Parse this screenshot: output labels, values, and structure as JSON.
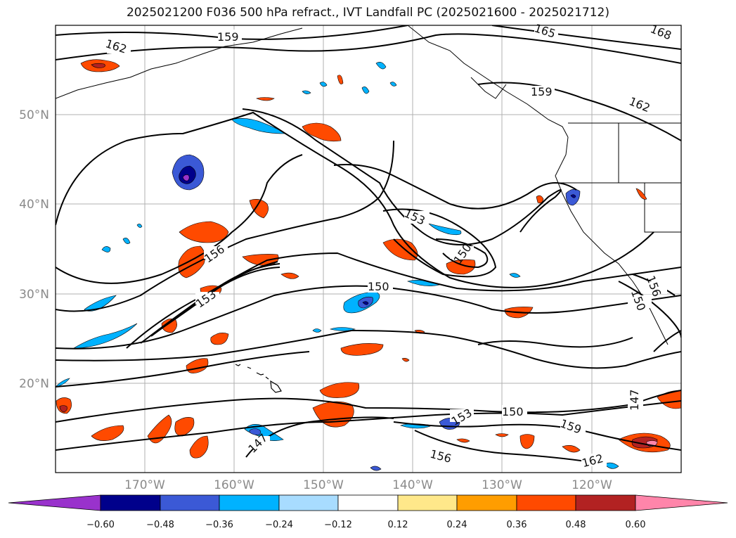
{
  "title": "2025021200 F036 500 hPa refract., IVT Landfall PC (2025021600 - 2025021712)",
  "map": {
    "lat_labels": [
      "50°N",
      "40°N",
      "30°N",
      "20°N"
    ],
    "lon_labels": [
      "170°W",
      "160°W",
      "150°W",
      "140°W",
      "130°W",
      "120°W"
    ],
    "contour_labels": [
      "159",
      "162",
      "165",
      "168",
      "159",
      "162",
      "153",
      "150",
      "156",
      "153",
      "150",
      "156",
      "150",
      "147",
      "150",
      "153",
      "159",
      "162",
      "156",
      "147"
    ],
    "fill_colors": {
      "orange_light": "#ffe88a",
      "orange": "#ff9d00",
      "red_orange": "#ff4a00",
      "dark_red": "#b22222",
      "blue_light": "#a8dcff",
      "cyan": "#00b2ff",
      "blue": "#3b59d6",
      "navy": "#00008b",
      "purple": "#9932cc"
    }
  },
  "colorbar": {
    "colors": [
      "#9932cc",
      "#00008b",
      "#3b59d6",
      "#00b2ff",
      "#a8dcff",
      "#ffffff",
      "#ffe88a",
      "#ff9d00",
      "#ff4a00",
      "#b22222",
      "#ff85aa"
    ],
    "ticks": [
      "−0.60",
      "−0.48",
      "−0.36",
      "−0.24",
      "−0.12",
      "0.12",
      "0.24",
      "0.36",
      "0.48",
      "0.60"
    ]
  }
}
